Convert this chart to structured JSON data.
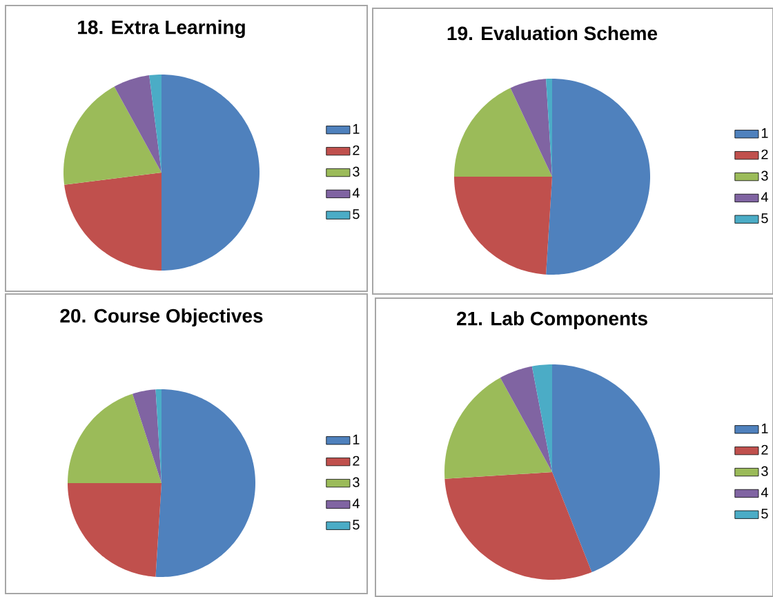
{
  "chart_data": [
    {
      "type": "pie",
      "title": "18. Extra Learning",
      "categories": [
        "1",
        "2",
        "3",
        "4",
        "5"
      ],
      "values": [
        50,
        23,
        19,
        6,
        2
      ],
      "colors": [
        "#4f81bd",
        "#c0504d",
        "#9bbb59",
        "#8064a2",
        "#4bacc6"
      ],
      "legend": "right"
    },
    {
      "type": "pie",
      "title": "19. Evaluation Scheme",
      "categories": [
        "1",
        "2",
        "3",
        "4",
        "5"
      ],
      "values": [
        51,
        24,
        18,
        6,
        1
      ],
      "colors": [
        "#4f81bd",
        "#c0504d",
        "#9bbb59",
        "#8064a2",
        "#4bacc6"
      ],
      "legend": "right"
    },
    {
      "type": "pie",
      "title": "20. Course Objectives",
      "categories": [
        "1",
        "2",
        "3",
        "4",
        "5"
      ],
      "values": [
        51,
        24,
        20,
        4,
        1
      ],
      "colors": [
        "#4f81bd",
        "#c0504d",
        "#9bbb59",
        "#8064a2",
        "#4bacc6"
      ],
      "legend": "right"
    },
    {
      "type": "pie",
      "title": "21.  Lab Components",
      "categories": [
        "1",
        "2",
        "3",
        "4",
        "5"
      ],
      "values": [
        44,
        30,
        18,
        5,
        3
      ],
      "colors": [
        "#4f81bd",
        "#c0504d",
        "#9bbb59",
        "#8064a2",
        "#4bacc6"
      ],
      "legend": "right"
    }
  ]
}
